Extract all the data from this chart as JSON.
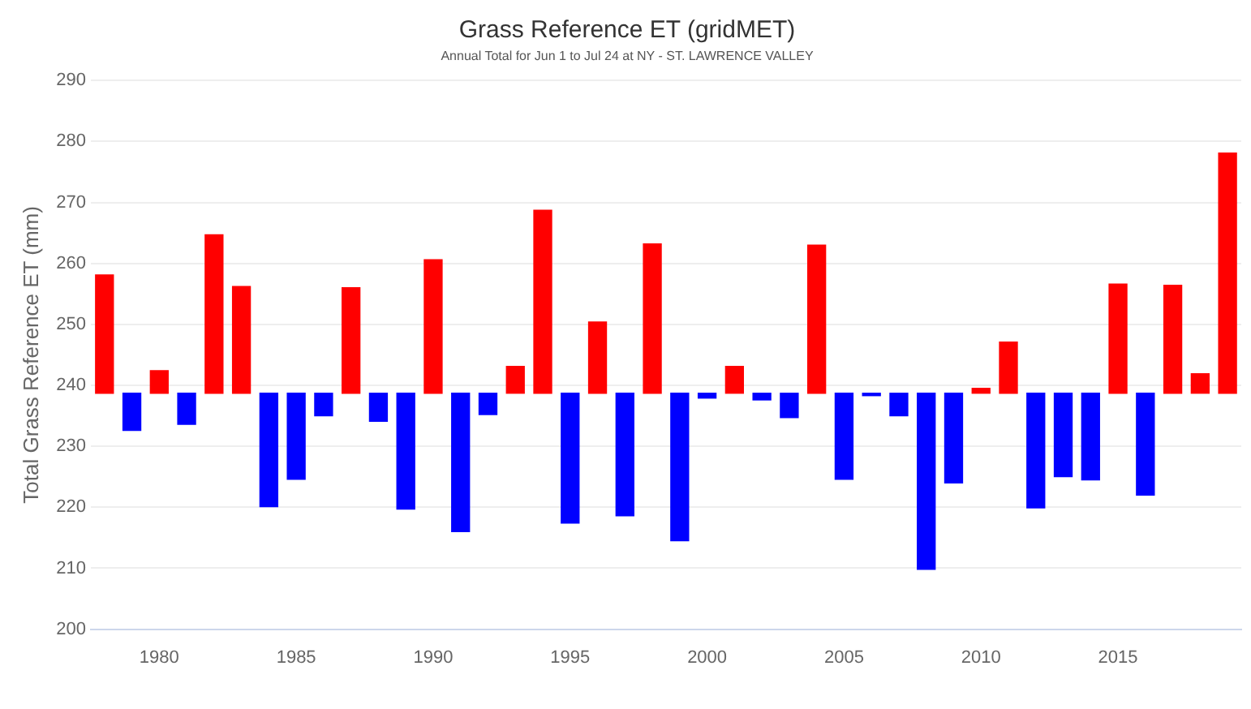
{
  "chart_data": {
    "type": "bar",
    "title": "Grass Reference ET (gridMET)",
    "subtitle": "Annual Total for Jun 1 to Jul 24 at NY - ST. LAWRENCE VALLEY",
    "ylabel": "Total Grass Reference ET (mm)",
    "x": [
      1978,
      1979,
      1980,
      1981,
      1982,
      1983,
      1984,
      1985,
      1986,
      1987,
      1988,
      1989,
      1990,
      1991,
      1992,
      1993,
      1994,
      1995,
      1996,
      1997,
      1998,
      1999,
      2000,
      2001,
      2002,
      2003,
      2004,
      2005,
      2006,
      2007,
      2008,
      2009,
      2010,
      2011,
      2012,
      2013,
      2014,
      2015,
      2016,
      2017,
      2018,
      2019
    ],
    "base": [
      238.7,
      238.7,
      238.7,
      238.7,
      238.7,
      238.7,
      238.7,
      238.7,
      238.7,
      238.7,
      238.7,
      238.7,
      238.7,
      238.7,
      238.7,
      238.7,
      238.7,
      238.7,
      238.7,
      238.7,
      238.7,
      238.7,
      238.7,
      238.7,
      238.7,
      238.7,
      238.7,
      238.7,
      238.7,
      238.7,
      238.7,
      238.7,
      238.7,
      238.7,
      238.7,
      238.7,
      238.7,
      238.7,
      238.7,
      238.7,
      238.7,
      238.7
    ],
    "values": [
      19.4,
      -6.1,
      3.7,
      -5.1,
      26.0,
      17.5,
      -18.6,
      -14.1,
      -3.7,
      17.3,
      -4.6,
      -19.0,
      21.9,
      -22.7,
      -3.5,
      4.4,
      30.0,
      -21.3,
      11.7,
      -20.1,
      24.5,
      -24.2,
      -0.8,
      4.4,
      -1.1,
      -4.0,
      24.3,
      -14.1,
      -0.4,
      -3.7,
      -28.9,
      -14.7,
      0.8,
      8.4,
      -18.8,
      -13.7,
      -14.2,
      17.9,
      -16.7,
      17.7,
      3.2,
      39.4
    ],
    "colors": [
      "#ff0000",
      "#0000ff",
      "#ff0000",
      "#0000ff",
      "#ff0000",
      "#ff0000",
      "#0000ff",
      "#0000ff",
      "#0000ff",
      "#ff0000",
      "#0000ff",
      "#0000ff",
      "#ff0000",
      "#0000ff",
      "#0000ff",
      "#ff0000",
      "#ff0000",
      "#0000ff",
      "#ff0000",
      "#0000ff",
      "#ff0000",
      "#0000ff",
      "#0000ff",
      "#ff0000",
      "#0000ff",
      "#0000ff",
      "#ff0000",
      "#0000ff",
      "#0000ff",
      "#0000ff",
      "#0000ff",
      "#0000ff",
      "#ff0000",
      "#ff0000",
      "#0000ff",
      "#0000ff",
      "#0000ff",
      "#ff0000",
      "#0000ff",
      "#ff0000",
      "#ff0000",
      "#ff0000"
    ],
    "xlim": [
      1977.5,
      2019.5
    ],
    "xticks": [
      1980,
      1985,
      1990,
      1995,
      2000,
      2005,
      2010,
      2015
    ],
    "ylim": [
      200,
      290
    ],
    "yticks": [
      200,
      210,
      220,
      230,
      240,
      250,
      260,
      270,
      280,
      290
    ],
    "grid": "y",
    "legend": false
  }
}
